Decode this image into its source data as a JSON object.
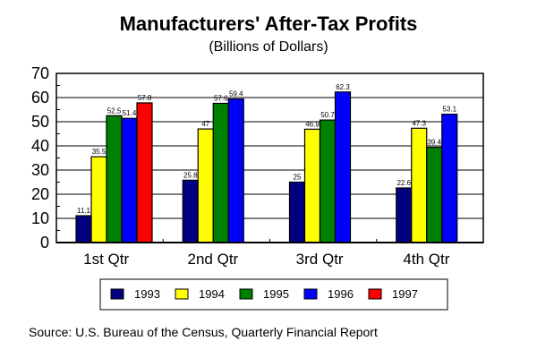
{
  "chart_data": {
    "type": "bar",
    "title": "Manufacturers' After-Tax Profits",
    "subtitle": "(Billions of Dollars)",
    "xlabel": "",
    "ylabel": "",
    "ylim": [
      0,
      70
    ],
    "yticks": [
      0,
      10,
      20,
      30,
      40,
      50,
      60,
      70
    ],
    "grid": true,
    "legend_position": "bottom",
    "categories": [
      "1st Qtr",
      "2nd Qtr",
      "3rd Qtr",
      "4th Qtr"
    ],
    "series": [
      {
        "name": "1993",
        "color": "#000080",
        "values": [
          11.1,
          25.8,
          25,
          22.6
        ]
      },
      {
        "name": "1994",
        "color": "#ffff00",
        "values": [
          35.5,
          47,
          46.9,
          47.3
        ]
      },
      {
        "name": "1995",
        "color": "#008000",
        "values": [
          52.5,
          57.6,
          50.7,
          39.4
        ]
      },
      {
        "name": "1996",
        "color": "#0000ff",
        "values": [
          51.4,
          59.4,
          62.3,
          53.1
        ]
      },
      {
        "name": "1997",
        "color": "#ff0000",
        "values": [
          57.8,
          null,
          null,
          null
        ]
      }
    ],
    "source": "Source:  U.S. Bureau of the Census, Quarterly Financial Report"
  }
}
